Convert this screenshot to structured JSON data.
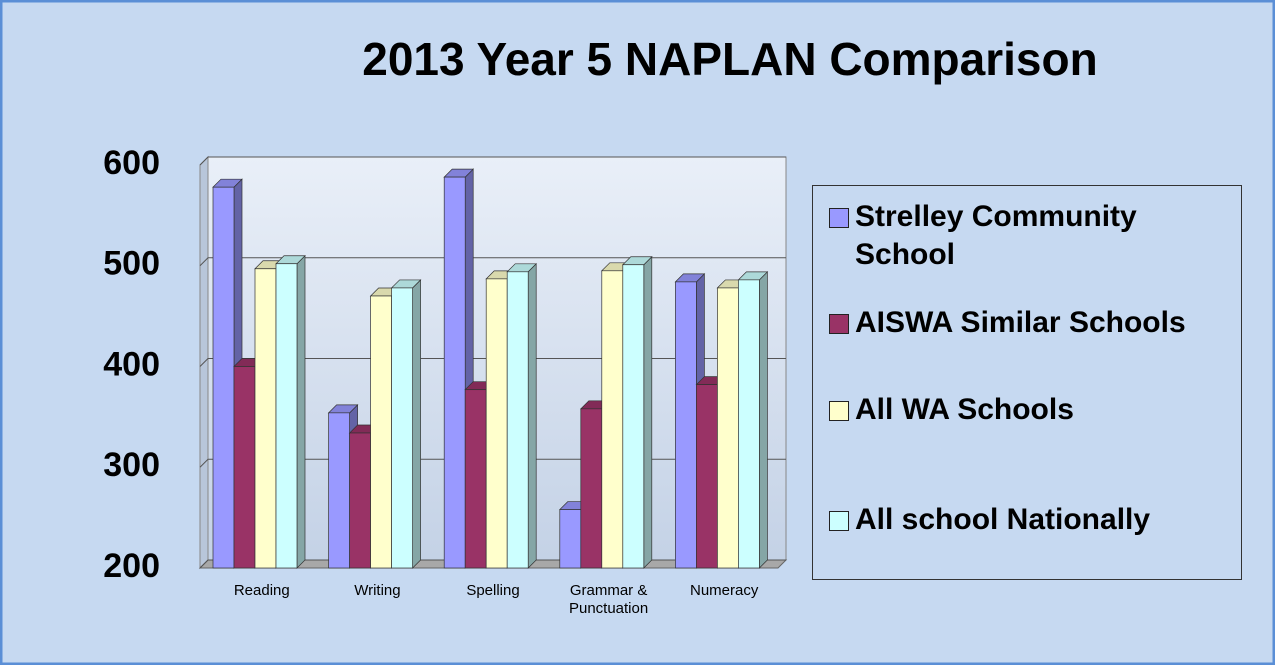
{
  "chart_data": {
    "type": "bar",
    "title": "2013 Year 5 NAPLAN Comparison",
    "categories": [
      "Reading",
      "Writing",
      "Spelling",
      "Grammar & Punctuation",
      "Numeracy"
    ],
    "series": [
      {
        "name": "Strelley Community School",
        "color": "#9999ff",
        "values": [
          578,
          354,
          588,
          258,
          484
        ]
      },
      {
        "name": "AISWA Similar Schools",
        "color": "#993366",
        "values": [
          400,
          334,
          377,
          358,
          382
        ]
      },
      {
        "name": "All WA Schools",
        "color": "#ffffcc",
        "values": [
          497,
          470,
          487,
          495,
          478
        ]
      },
      {
        "name": "All school Nationally",
        "color": "#ccffff",
        "values": [
          502,
          478,
          494,
          501,
          486
        ]
      }
    ],
    "ylim": [
      200,
      600
    ],
    "yticks": [
      200,
      300,
      400,
      500,
      600
    ],
    "grid": true,
    "legend": "right"
  }
}
